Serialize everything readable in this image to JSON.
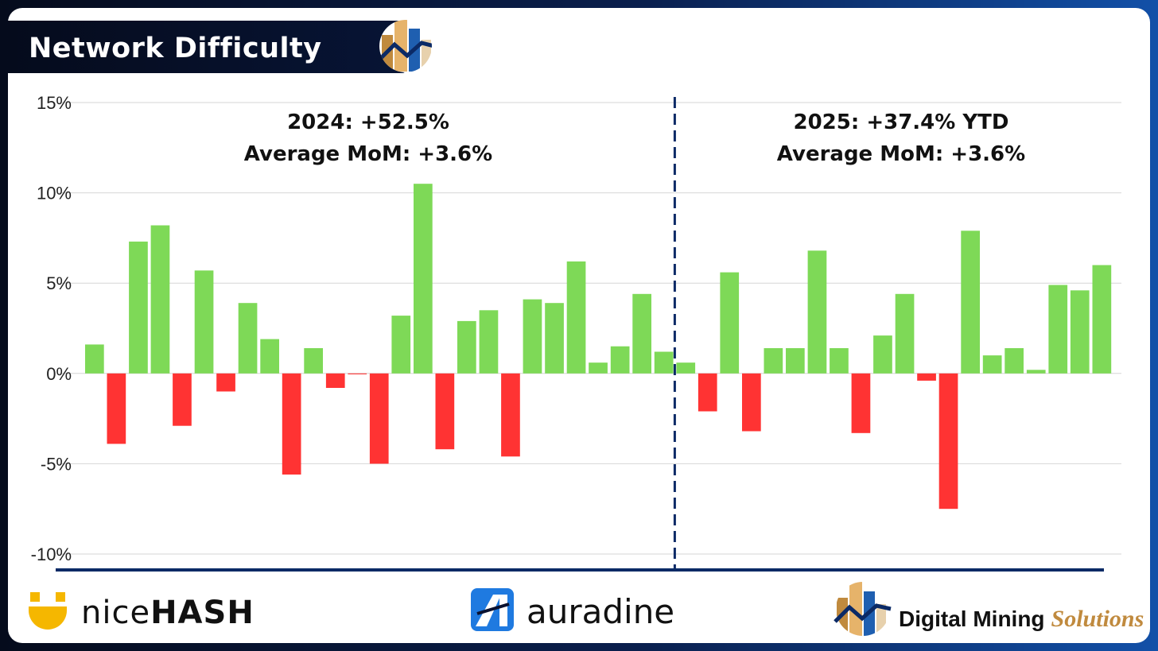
{
  "page_title": "Network Difficulty",
  "chart_data": {
    "type": "bar",
    "title": "Network Difficulty",
    "ylabel": "",
    "xlabel": "",
    "ylim": [
      -10,
      15
    ],
    "yticks": [
      15,
      10,
      5,
      0,
      -5,
      -10
    ],
    "ytick_labels": [
      "15%",
      "10%",
      "5%",
      "0%",
      "-5%",
      "-10%"
    ],
    "positive_color": "#7ed957",
    "negative_color": "#ff3333",
    "divider_color": "#0b2a66",
    "divider_after_index": 27,
    "values": [
      1.6,
      -3.9,
      7.3,
      8.2,
      -2.9,
      5.7,
      -1.0,
      3.9,
      1.9,
      -5.6,
      1.4,
      -0.8,
      -0.05,
      -5.0,
      3.2,
      10.5,
      -4.2,
      2.9,
      3.5,
      -4.6,
      4.1,
      3.9,
      6.2,
      0.6,
      1.5,
      4.4,
      1.2,
      0.6,
      -2.1,
      5.6,
      -3.2,
      1.4,
      1.4,
      6.8,
      1.4,
      -3.3,
      2.1,
      4.4,
      -0.4,
      -7.5,
      7.9,
      1.0,
      1.4,
      0.2,
      4.9,
      4.6,
      6.0
    ],
    "annotations": [
      {
        "line1": "2024: +52.5%",
        "line2": "Average MoM: +3.6%"
      },
      {
        "line1": "2025: +37.4% YTD",
        "line2": "Average MoM: +3.6%"
      }
    ]
  },
  "logos": {
    "nicehash": {
      "text_light": "nice",
      "text_bold": "HASH"
    },
    "auradine": {
      "text": "auradine"
    },
    "dms": {
      "text_main": "Digital Mining",
      "text_accent": "Solutions"
    }
  },
  "colors": {
    "accent_gold": "#c08a3e",
    "accent_blue": "#1f5fb0",
    "nicehash_yellow": "#f5b700"
  }
}
